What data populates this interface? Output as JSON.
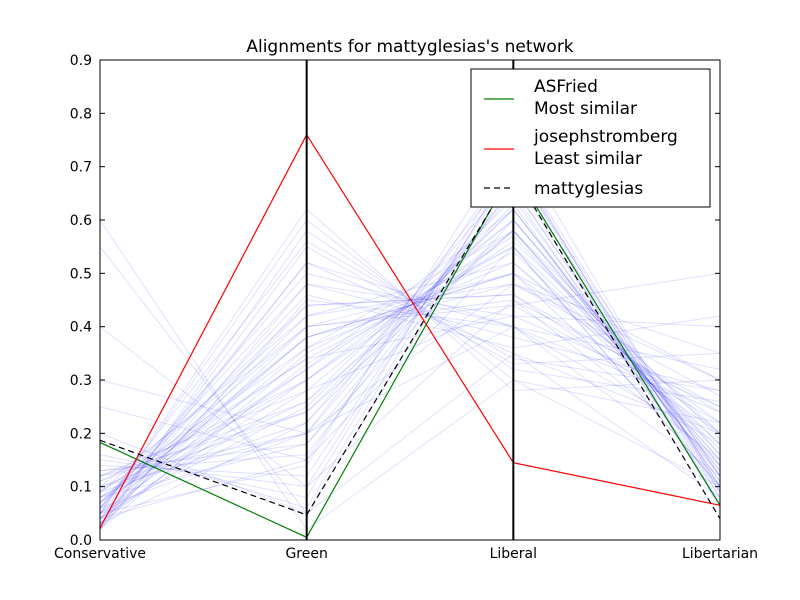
{
  "chart_data": {
    "type": "line",
    "subtype": "parallel-coordinates",
    "title": "Alignments for mattyglesias's network",
    "categories": [
      "Conservative",
      "Green",
      "Liberal",
      "Libertarian"
    ],
    "ylim": [
      0,
      0.9
    ],
    "yticks": [
      "0.0",
      "0.1",
      "0.2",
      "0.3",
      "0.4",
      "0.5",
      "0.6",
      "0.7",
      "0.8",
      "0.9"
    ],
    "grid": false,
    "legend_position": "top-right",
    "background_series_color": "#0000ff",
    "series": [
      {
        "name": "ASFried",
        "label_line2": "Most similar",
        "color": "#008000",
        "dash": "solid",
        "values": [
          0.183,
          0.005,
          0.695,
          0.065
        ]
      },
      {
        "name": "josephstromberg",
        "label_line2": "Least similar",
        "color": "#ff0000",
        "dash": "solid",
        "values": [
          0.022,
          0.76,
          0.145,
          0.065
        ]
      },
      {
        "name": "mattyglesias",
        "label_line2": "",
        "color": "#000000",
        "dash": "dashed",
        "values": [
          0.187,
          0.047,
          0.69,
          0.04
        ]
      }
    ],
    "background_series": [
      [
        0.03,
        0.33,
        0.55,
        0.1
      ],
      [
        0.05,
        0.25,
        0.62,
        0.12
      ],
      [
        0.08,
        0.3,
        0.58,
        0.15
      ],
      [
        0.02,
        0.45,
        0.4,
        0.18
      ],
      [
        0.1,
        0.2,
        0.65,
        0.08
      ],
      [
        0.04,
        0.15,
        0.72,
        0.1
      ],
      [
        0.06,
        0.38,
        0.5,
        0.14
      ],
      [
        0.12,
        0.28,
        0.6,
        0.16
      ],
      [
        0.03,
        0.52,
        0.35,
        0.2
      ],
      [
        0.07,
        0.4,
        0.45,
        0.25
      ],
      [
        0.15,
        0.1,
        0.7,
        0.12
      ],
      [
        0.09,
        0.22,
        0.63,
        0.09
      ],
      [
        0.05,
        0.6,
        0.3,
        0.22
      ],
      [
        0.02,
        0.35,
        0.55,
        0.18
      ],
      [
        0.2,
        0.05,
        0.68,
        0.07
      ],
      [
        0.04,
        0.42,
        0.48,
        0.3
      ],
      [
        0.08,
        0.18,
        0.66,
        0.11
      ],
      [
        0.06,
        0.48,
        0.38,
        0.28
      ],
      [
        0.11,
        0.26,
        0.58,
        0.13
      ],
      [
        0.03,
        0.55,
        0.33,
        0.35
      ],
      [
        0.14,
        0.12,
        0.69,
        0.09
      ],
      [
        0.05,
        0.32,
        0.57,
        0.16
      ],
      [
        0.09,
        0.36,
        0.52,
        0.2
      ],
      [
        0.07,
        0.44,
        0.46,
        0.24
      ],
      [
        0.02,
        0.58,
        0.32,
        0.26
      ],
      [
        0.13,
        0.16,
        0.66,
        0.1
      ],
      [
        0.04,
        0.3,
        0.6,
        0.14
      ],
      [
        0.1,
        0.24,
        0.62,
        0.12
      ],
      [
        0.06,
        0.5,
        0.4,
        0.32
      ],
      [
        0.03,
        0.4,
        0.5,
        0.22
      ],
      [
        0.55,
        0.05,
        0.35,
        0.08
      ],
      [
        0.6,
        0.02,
        0.3,
        0.1
      ],
      [
        0.4,
        0.1,
        0.45,
        0.15
      ],
      [
        0.3,
        0.2,
        0.4,
        0.12
      ],
      [
        0.25,
        0.15,
        0.55,
        0.1
      ],
      [
        0.08,
        0.34,
        0.42,
        0.4
      ],
      [
        0.05,
        0.46,
        0.36,
        0.42
      ],
      [
        0.12,
        0.2,
        0.48,
        0.35
      ],
      [
        0.04,
        0.28,
        0.44,
        0.5
      ],
      [
        0.07,
        0.38,
        0.5,
        0.3
      ],
      [
        0.16,
        0.08,
        0.72,
        0.06
      ],
      [
        0.05,
        0.14,
        0.75,
        0.09
      ],
      [
        0.03,
        0.22,
        0.68,
        0.12
      ],
      [
        0.09,
        0.42,
        0.52,
        0.18
      ],
      [
        0.06,
        0.56,
        0.34,
        0.28
      ],
      [
        0.11,
        0.3,
        0.56,
        0.2
      ],
      [
        0.04,
        0.36,
        0.58,
        0.15
      ],
      [
        0.08,
        0.26,
        0.64,
        0.11
      ],
      [
        0.02,
        0.48,
        0.42,
        0.25
      ],
      [
        0.13,
        0.18,
        0.6,
        0.14
      ],
      [
        0.05,
        0.62,
        0.28,
        0.3
      ],
      [
        0.07,
        0.32,
        0.62,
        0.13
      ],
      [
        0.1,
        0.4,
        0.44,
        0.22
      ],
      [
        0.03,
        0.44,
        0.46,
        0.2
      ],
      [
        0.18,
        0.06,
        0.71,
        0.08
      ],
      [
        0.06,
        0.2,
        0.7,
        0.1
      ],
      [
        0.04,
        0.52,
        0.4,
        0.24
      ],
      [
        0.09,
        0.34,
        0.54,
        0.17
      ],
      [
        0.12,
        0.24,
        0.58,
        0.19
      ],
      [
        0.05,
        0.38,
        0.48,
        0.27
      ]
    ]
  }
}
